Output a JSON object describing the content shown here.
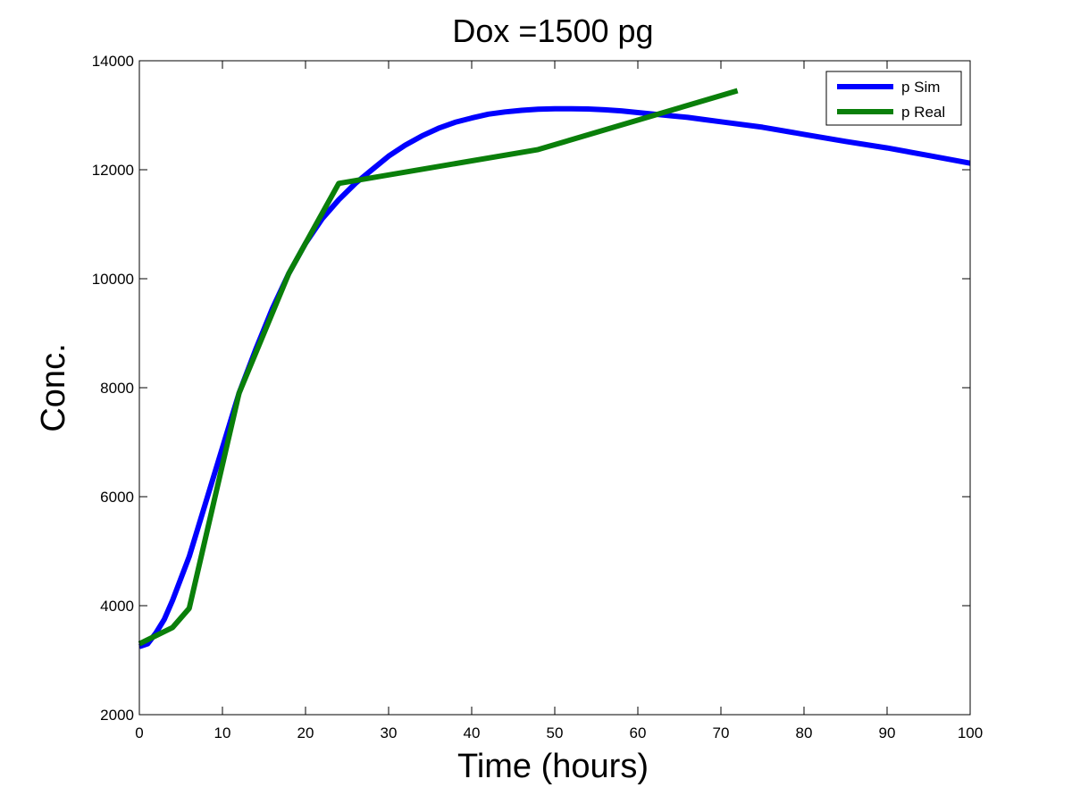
{
  "chart_data": {
    "type": "line",
    "title": "Dox =1500 pg",
    "xlabel": "Time (hours)",
    "ylabel": "Conc.",
    "xlim": [
      0,
      100
    ],
    "ylim": [
      2000,
      14000
    ],
    "xticks": [
      0,
      10,
      20,
      30,
      40,
      50,
      60,
      70,
      80,
      90,
      100
    ],
    "yticks": [
      2000,
      4000,
      6000,
      8000,
      10000,
      12000,
      14000
    ],
    "grid": false,
    "legend_position": "top-right",
    "series": [
      {
        "name": "p Sim",
        "color": "#0000ff",
        "x": [
          0,
          1,
          2,
          3,
          4,
          5,
          6,
          8,
          10,
          12,
          14,
          16,
          18,
          20,
          22,
          24,
          26,
          28,
          30,
          32,
          34,
          36,
          38,
          40,
          42,
          44,
          46,
          48,
          50,
          52,
          54,
          56,
          58,
          60,
          62,
          64,
          66,
          68,
          70,
          75,
          80,
          85,
          90,
          95,
          100
        ],
        "y": [
          3250,
          3300,
          3500,
          3750,
          4100,
          4500,
          4900,
          5900,
          6900,
          7900,
          8700,
          9450,
          10100,
          10650,
          11100,
          11450,
          11750,
          12000,
          12250,
          12450,
          12620,
          12760,
          12870,
          12950,
          13020,
          13060,
          13090,
          13110,
          13120,
          13120,
          13115,
          13100,
          13080,
          13050,
          13020,
          12990,
          12960,
          12920,
          12880,
          12780,
          12650,
          12520,
          12400,
          12260,
          12120
        ]
      },
      {
        "name": "p Real",
        "color": "#0a7f0a",
        "x": [
          0,
          4,
          6,
          12,
          18,
          24,
          48,
          72
        ],
        "y": [
          3300,
          3600,
          3950,
          7900,
          10100,
          11750,
          12370,
          13450
        ]
      }
    ]
  }
}
